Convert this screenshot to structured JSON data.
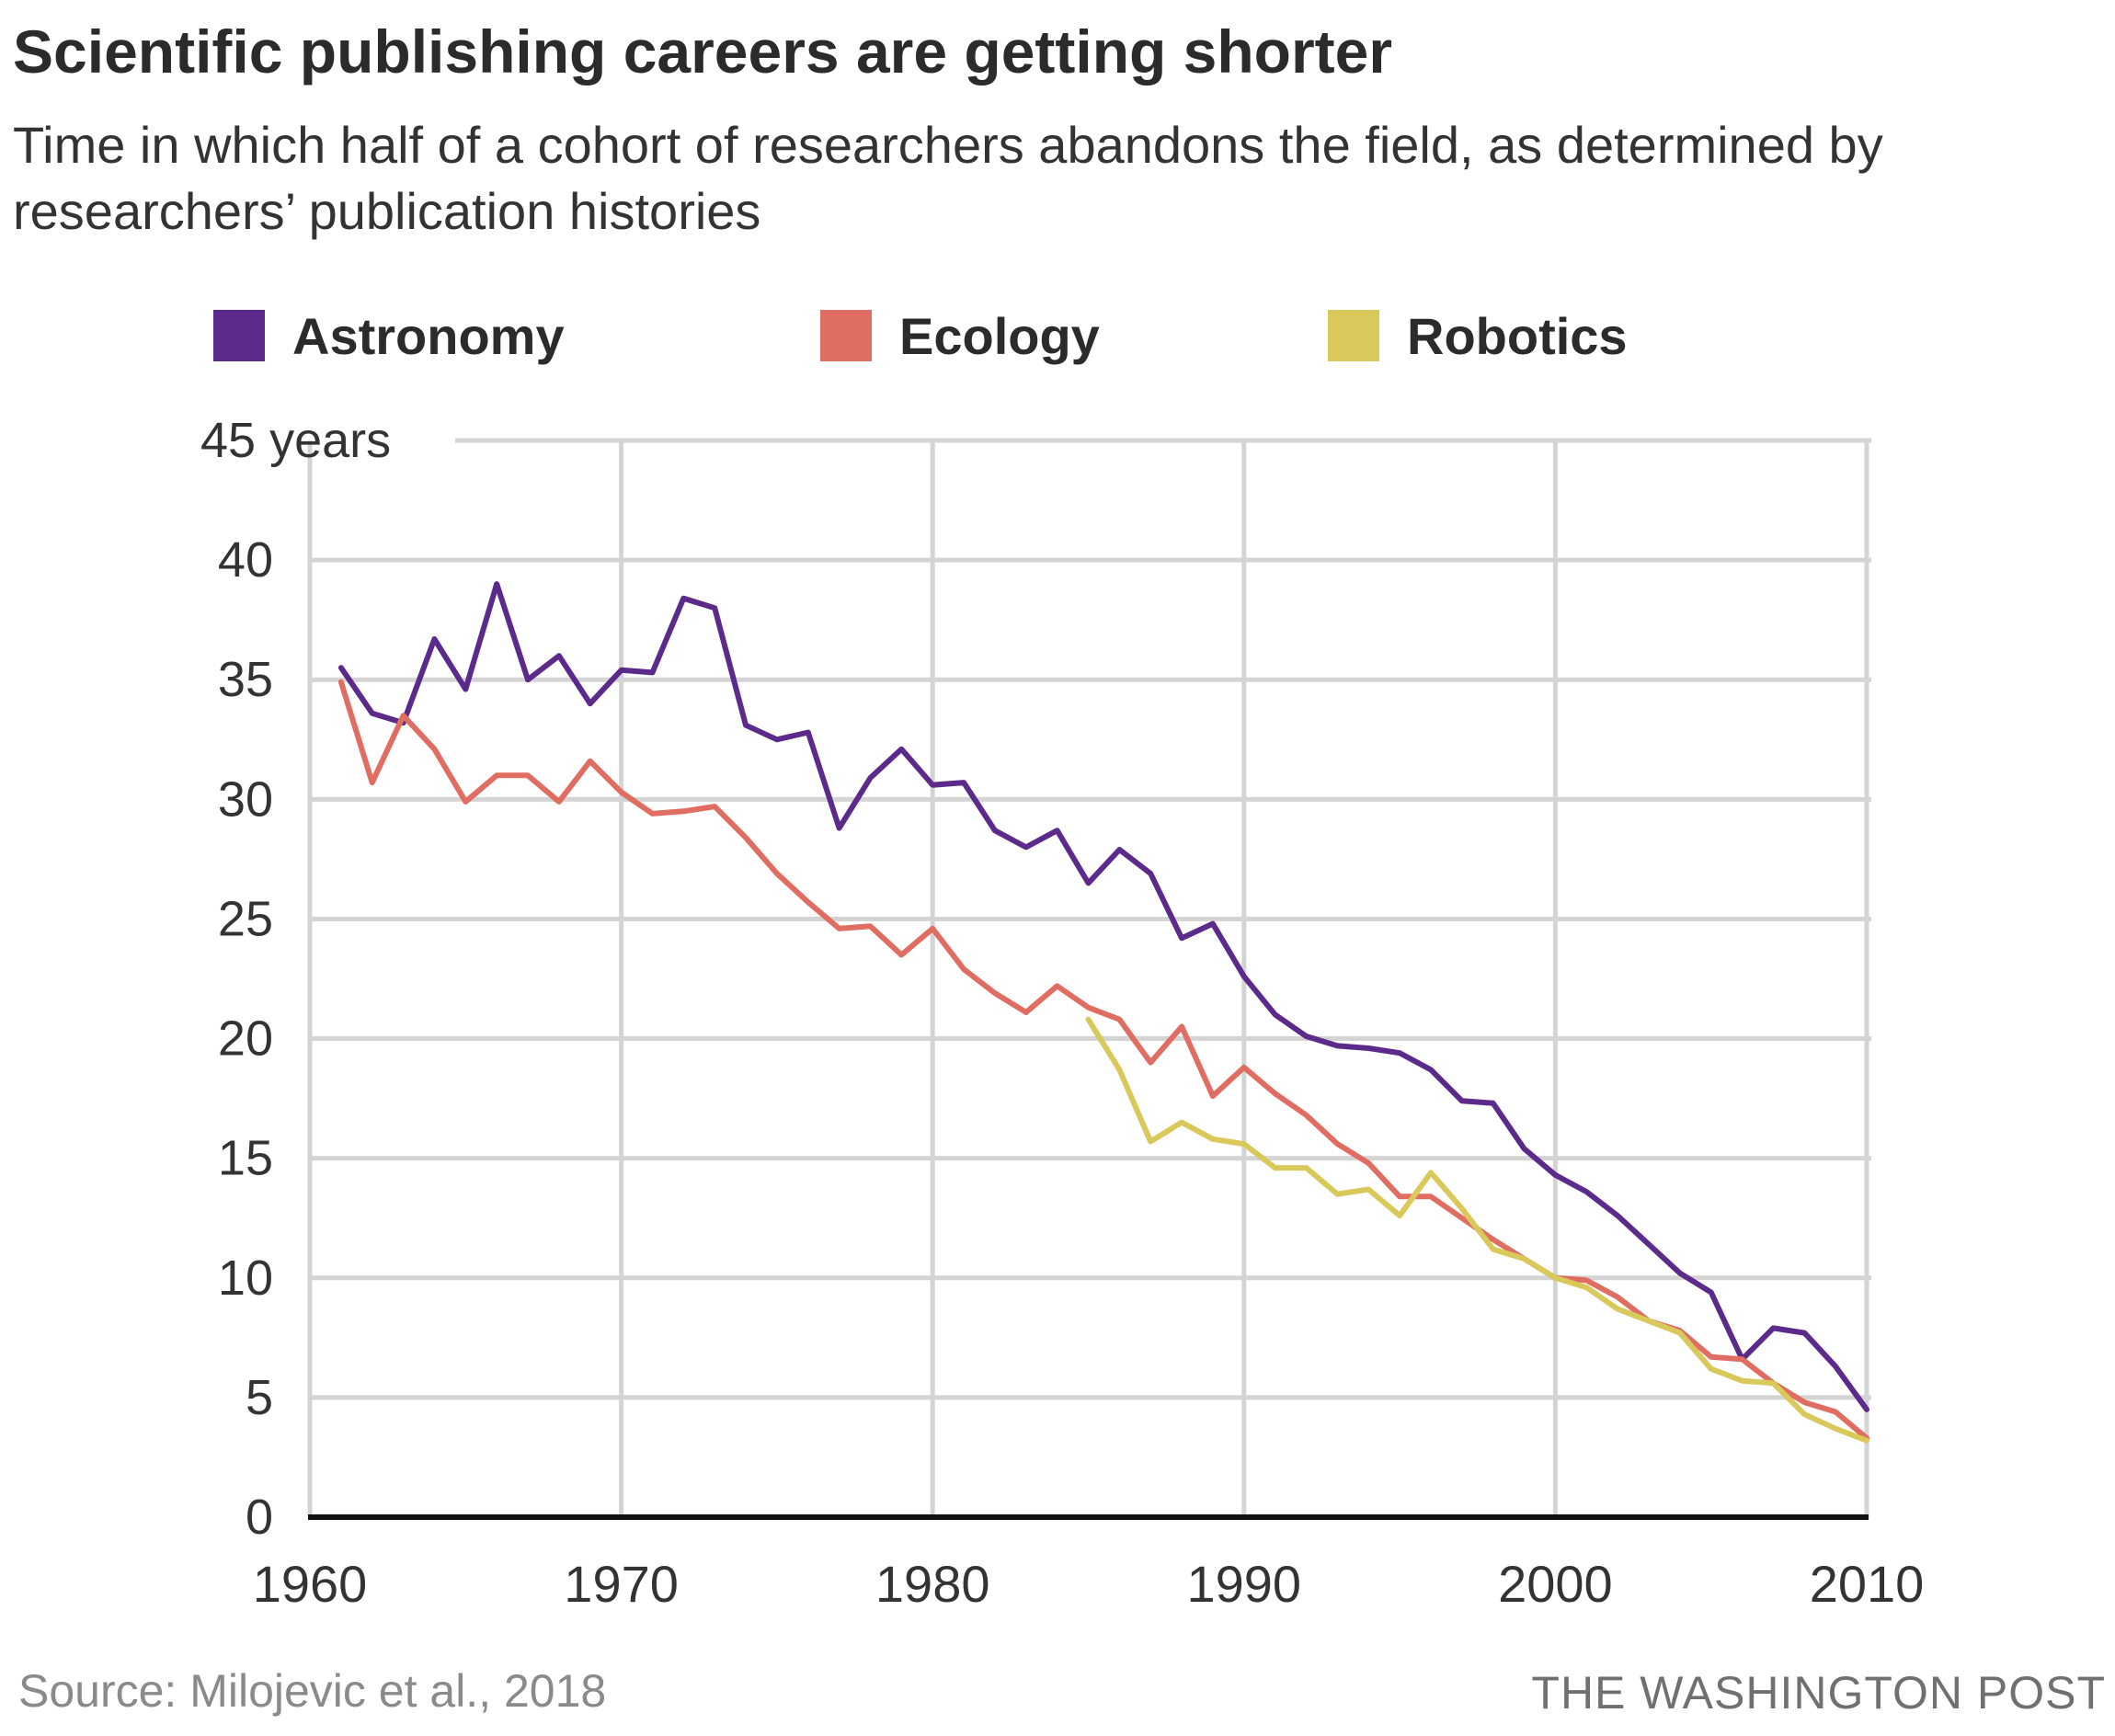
{
  "header": {
    "title": "Scientific publishing careers are getting shorter",
    "subtitle": "Time in which half of a cohort of researchers abandons the field, as determined by researchers’ publication histories"
  },
  "footer": {
    "source": "Source: Milojevic et al., 2018",
    "credit": "THE WASHINGTON POST"
  },
  "chart_data": {
    "type": "line",
    "title": "Scientific publishing careers are getting shorter",
    "ylabel": "years",
    "xlabel": "",
    "xlim": [
      1960,
      2010
    ],
    "ylim": [
      0,
      45
    ],
    "x_ticks": [
      "1960",
      "1970",
      "1980",
      "1990",
      "2000",
      "2010"
    ],
    "x_tick_values": [
      1960,
      1970,
      1980,
      1990,
      2000,
      2010
    ],
    "y_ticks": [
      "0",
      "5",
      "10",
      "15",
      "20",
      "25",
      "30",
      "35",
      "40",
      "45 years"
    ],
    "y_tick_values": [
      0,
      5,
      10,
      15,
      20,
      25,
      30,
      35,
      40,
      45
    ],
    "grid": true,
    "legend_position": "top",
    "series": [
      {
        "name": "Astronomy",
        "color": "#5c2a8a",
        "x": [
          1961,
          1962,
          1963,
          1964,
          1965,
          1966,
          1967,
          1968,
          1969,
          1970,
          1971,
          1972,
          1973,
          1974,
          1975,
          1976,
          1977,
          1978,
          1979,
          1980,
          1981,
          1982,
          1983,
          1984,
          1985,
          1986,
          1987,
          1988,
          1989,
          1990,
          1991,
          1992,
          1993,
          1994,
          1995,
          1996,
          1997,
          1998,
          1999,
          2000,
          2001,
          2002,
          2003,
          2004,
          2005,
          2006,
          2007,
          2008,
          2009,
          2010
        ],
        "values": [
          35.5,
          33.6,
          33.2,
          36.7,
          34.6,
          39.0,
          35.0,
          36.0,
          34.0,
          35.4,
          35.3,
          38.4,
          38.0,
          33.1,
          32.5,
          32.8,
          28.8,
          30.9,
          32.1,
          30.6,
          30.7,
          28.7,
          28.0,
          28.7,
          26.5,
          27.9,
          26.9,
          24.2,
          24.8,
          22.6,
          21.0,
          20.1,
          19.7,
          19.6,
          19.4,
          18.7,
          17.4,
          17.3,
          15.4,
          14.3,
          13.6,
          12.6,
          11.4,
          10.2,
          9.4,
          6.6,
          7.9,
          7.7,
          6.3,
          4.5
        ]
      },
      {
        "name": "Ecology",
        "color": "#e06d61",
        "x": [
          1961,
          1962,
          1963,
          1964,
          1965,
          1966,
          1967,
          1968,
          1969,
          1970,
          1971,
          1972,
          1973,
          1974,
          1975,
          1976,
          1977,
          1978,
          1979,
          1980,
          1981,
          1982,
          1983,
          1984,
          1985,
          1986,
          1987,
          1988,
          1989,
          1990,
          1991,
          1992,
          1993,
          1994,
          1995,
          1996,
          1997,
          1998,
          1999,
          2000,
          2001,
          2002,
          2003,
          2004,
          2005,
          2006,
          2007,
          2008,
          2009,
          2010
        ],
        "values": [
          34.9,
          30.7,
          33.5,
          32.1,
          29.9,
          31.0,
          31.0,
          29.9,
          31.6,
          30.3,
          29.4,
          29.5,
          29.7,
          28.4,
          26.9,
          25.7,
          24.6,
          24.7,
          23.5,
          24.6,
          22.9,
          21.9,
          21.1,
          22.2,
          21.3,
          20.8,
          19.0,
          20.5,
          17.6,
          18.8,
          17.7,
          16.8,
          15.6,
          14.8,
          13.4,
          13.4,
          12.5,
          11.6,
          10.8,
          10.0,
          9.9,
          9.2,
          8.2,
          7.8,
          6.7,
          6.6,
          5.6,
          4.8,
          4.4,
          3.3
        ]
      },
      {
        "name": "Robotics",
        "color": "#d9c85a",
        "x": [
          1985,
          1986,
          1987,
          1988,
          1989,
          1990,
          1991,
          1992,
          1993,
          1994,
          1995,
          1996,
          1997,
          1998,
          1999,
          2000,
          2001,
          2002,
          2003,
          2004,
          2005,
          2006,
          2007,
          2008,
          2009,
          2010
        ],
        "values": [
          20.8,
          18.7,
          15.7,
          16.5,
          15.8,
          15.6,
          14.6,
          14.6,
          13.5,
          13.7,
          12.6,
          14.4,
          12.9,
          11.2,
          10.8,
          10.0,
          9.6,
          8.7,
          8.2,
          7.7,
          6.2,
          5.7,
          5.6,
          4.3,
          3.7,
          3.2
        ]
      }
    ]
  }
}
